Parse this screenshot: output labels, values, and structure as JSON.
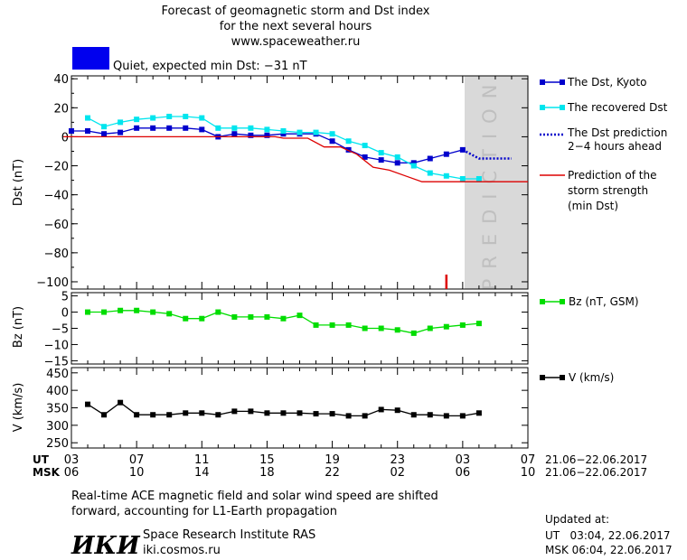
{
  "header": {
    "title_line1": "Forecast of geomagnetic storm and Dst index",
    "title_line2": "for the next several hours",
    "website": "www.spaceweather.ru",
    "status_text": "Quiet, expected min Dst: −31 nT",
    "status_color": "#0000ee"
  },
  "prediction_label": "PREDICTION",
  "time_axis": {
    "ut_label": "UT",
    "msk_label": "MSK",
    "ut_ticks": [
      "03",
      "07",
      "11",
      "15",
      "19",
      "23",
      "03",
      "07"
    ],
    "msk_ticks": [
      "06",
      "10",
      "14",
      "18",
      "22",
      "02",
      "06",
      "10"
    ],
    "ut_range": "21.06−22.06.2017",
    "msk_range": "21.06−22.06.2017"
  },
  "legend": {
    "dst_kyoto": "The Dst, Kyoto",
    "dst_recovered": "The recovered Dst",
    "dst_prediction_line1": "The Dst prediction",
    "dst_prediction_line2": "2−4 hours ahead",
    "storm_line1": "Prediction of the",
    "storm_line2": "storm strength",
    "storm_line3": "(min Dst)",
    "bz": "Bz (nT, GSM)",
    "v": "V (km/s)"
  },
  "footer": {
    "note_line1": "Real-time ACE magnetic field and solar wind speed are shifted",
    "note_line2": "forward, accounting for L1-Earth propagation",
    "logo_text": "ИКИ",
    "institute": "Space Research Institute RAS",
    "institute_site": "iki.cosmos.ru",
    "updated_label": "Updated at:",
    "updated_ut": "UT   03:04, 22.06.2017",
    "updated_msk": "MSK 06:04, 22.06.2017"
  },
  "colors": {
    "kyoto": "#0000cc",
    "recovered": "#00e5ee",
    "prediction": "#0000cc",
    "storm": "#dd0000",
    "bz": "#00dd00",
    "v": "#000000",
    "prediction_band": "#d9d9d9"
  },
  "chart_data": [
    {
      "type": "line",
      "ylabel": "Dst (nT)",
      "ylim": [
        -105,
        42
      ],
      "xlim": [
        0,
        28
      ],
      "yticks": [
        40,
        20,
        0,
        -20,
        -40,
        -60,
        -80,
        -100
      ],
      "prediction_band_x": [
        24,
        28
      ],
      "series": [
        {
          "name": "The Dst, Kyoto",
          "x": [
            0,
            1,
            2,
            3,
            4,
            5,
            6,
            7,
            8,
            9,
            10,
            11,
            12,
            13,
            14,
            15,
            16,
            17,
            18,
            19,
            20,
            21,
            22,
            23,
            24
          ],
          "y": [
            4,
            4,
            2,
            3,
            6,
            6,
            6,
            6,
            5,
            0,
            2,
            1,
            1,
            2,
            2,
            2,
            -3,
            -9,
            -14,
            -16,
            -18,
            -18,
            -15,
            -12,
            -9
          ]
        },
        {
          "name": "The recovered Dst",
          "x": [
            1,
            2,
            3,
            4,
            5,
            6,
            7,
            8,
            9,
            10,
            11,
            12,
            13,
            14,
            15,
            16,
            17,
            18,
            19,
            20,
            21,
            22,
            23,
            24,
            25
          ],
          "y": [
            13,
            7,
            10,
            12,
            13,
            14,
            14,
            13,
            6,
            6,
            6,
            5,
            4,
            3,
            3,
            2,
            -3,
            -6,
            -11,
            -14,
            -20,
            -25,
            -27,
            -29,
            -29
          ]
        },
        {
          "name": "The Dst prediction 2−4 hours ahead",
          "x": [
            24,
            25,
            26,
            27
          ],
          "y": [
            -9,
            -15,
            -15,
            -15
          ]
        },
        {
          "name": "Prediction of the storm strength (min Dst)",
          "x": [
            -0.5,
            12.5,
            13,
            14,
            14.5,
            15.5,
            16.5,
            17.5,
            18.5,
            19.5,
            20.5,
            21.5,
            28
          ],
          "y": [
            0,
            0,
            -1,
            -1,
            -1,
            -7,
            -7,
            -12,
            -21,
            -23,
            -27,
            -31,
            -31
          ]
        }
      ],
      "annotations": [
        {
          "x": 23,
          "y": -100,
          "text": "storm onset marker (red tick)"
        }
      ]
    },
    {
      "type": "line",
      "ylabel": "Bz (nT)",
      "ylim": [
        -16,
        6
      ],
      "yticks": [
        5,
        0,
        -5,
        -10,
        -15
      ],
      "series": [
        {
          "name": "Bz (nT, GSM)",
          "x": [
            1,
            2,
            3,
            4,
            5,
            6,
            7,
            8,
            9,
            10,
            11,
            12,
            13,
            14,
            15,
            16,
            17,
            18,
            19,
            20,
            21,
            22,
            23,
            24,
            25
          ],
          "y": [
            0,
            0,
            0.5,
            0.5,
            0,
            -0.5,
            -2,
            -2,
            0,
            -1.5,
            -1.5,
            -1.5,
            -2,
            -1,
            -4,
            -4,
            -4,
            -5,
            -5,
            -5.5,
            -6.5,
            -5,
            -4.5,
            -4,
            -3.5
          ]
        }
      ]
    },
    {
      "type": "line",
      "ylabel": "V (km/s)",
      "ylim": [
        235,
        465
      ],
      "yticks": [
        450,
        400,
        350,
        300,
        250
      ],
      "series": [
        {
          "name": "V (km/s)",
          "x": [
            1,
            2,
            3,
            4,
            5,
            6,
            7,
            8,
            9,
            10,
            11,
            12,
            13,
            14,
            15,
            16,
            17,
            18,
            19,
            20,
            21,
            22,
            23,
            24,
            25
          ],
          "y": [
            360,
            330,
            365,
            330,
            330,
            330,
            335,
            335,
            330,
            340,
            340,
            335,
            335,
            335,
            333,
            333,
            327,
            327,
            345,
            343,
            330,
            330,
            327,
            327,
            335
          ]
        }
      ]
    }
  ]
}
